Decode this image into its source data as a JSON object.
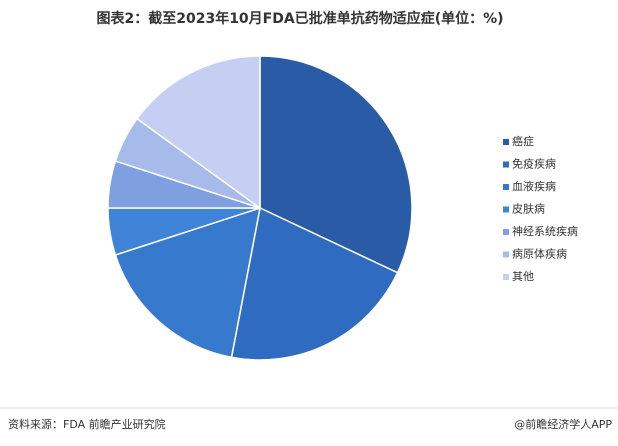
{
  "chart_data": {
    "type": "pie",
    "title": "图表2：截至2023年10月FDA已批准单抗药物适应症(单位：%)",
    "categories": [
      "癌症",
      "免疫疾病",
      "血液疾病",
      "皮肤病",
      "神经系统疾病",
      "病原体疾病",
      "其他"
    ],
    "values": [
      32,
      21,
      17,
      5,
      5,
      5,
      15
    ],
    "colors": [
      "#2a5ba6",
      "#2f6bc0",
      "#3779cc",
      "#3f84d6",
      "#7f9fe0",
      "#a7bbea",
      "#c5cff3"
    ],
    "legend": "right"
  },
  "source": "资料来源：FDA 前瞻产业研究院",
  "brand": "@前瞻经济学人APP"
}
